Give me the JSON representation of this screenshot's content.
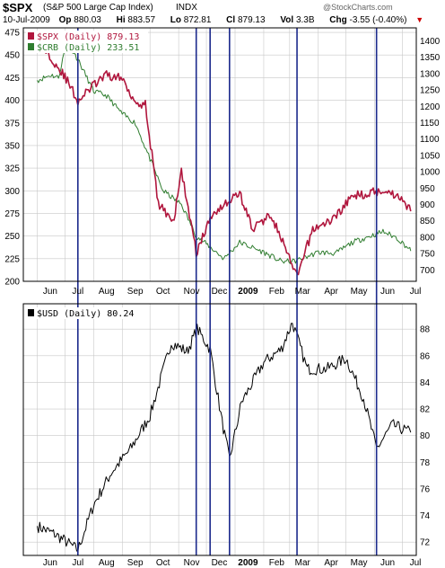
{
  "header": {
    "symbol": "$SPX",
    "name": "(S&P 500 Large Cap Index)",
    "exchange": "INDX",
    "watermark": "@StockCharts.com",
    "date": "10-Jul-2009",
    "open_label": "Op",
    "open": "880.03",
    "high_label": "Hi",
    "high": "883.57",
    "low_label": "Lo",
    "low": "872.81",
    "close_label": "Cl",
    "close": "879.13",
    "vol_label": "Vol",
    "vol": "3.3B",
    "chg_label": "Chg",
    "chg": "-3.55 (-0.40%)"
  },
  "legend": {
    "spx": "$SPX (Daily) 879.13",
    "crb": "$CRB (Daily) 233.51",
    "usd": "$USD (Daily) 80.24"
  },
  "colors": {
    "spx": "#b0163d",
    "crb": "#2f7d2f",
    "usd": "#000000",
    "vline": "#1c2a8c",
    "grid": "#c8c8c8"
  },
  "chart_data": [
    {
      "type": "line",
      "title": "$SPX (S&P 500 Large Cap Index) INDX",
      "x_ticks": [
        "Jun",
        "Jul",
        "Aug",
        "Sep",
        "Oct",
        "Nov",
        "Dec",
        "2009",
        "Feb",
        "Mar",
        "Apr",
        "May",
        "Jun",
        "Jul"
      ],
      "y_left_ticks": [
        200,
        225,
        250,
        275,
        300,
        325,
        350,
        375,
        400,
        425,
        450,
        475
      ],
      "y_left_range": [
        200,
        480
      ],
      "y_right_ticks": [
        700,
        750,
        800,
        850,
        900,
        950,
        1000,
        1050,
        1100,
        1150,
        1200,
        1250,
        1300,
        1350,
        1400
      ],
      "y_right_range": [
        665,
        1440
      ],
      "series": [
        {
          "name": "$SPX (Daily) 879.13",
          "axis": "right",
          "x": [
            "2008-06-01",
            "2008-06-16",
            "2008-07-01",
            "2008-07-08",
            "2008-07-15",
            "2008-08-01",
            "2008-08-15",
            "2008-09-01",
            "2008-09-15",
            "2008-09-26",
            "2008-10-10",
            "2008-10-27",
            "2008-11-04",
            "2008-11-20",
            "2008-12-08",
            "2009-01-06",
            "2009-01-20",
            "2009-02-09",
            "2009-03-09",
            "2009-03-26",
            "2009-04-15",
            "2009-05-08",
            "2009-06-12",
            "2009-06-30",
            "2009-07-10"
          ],
          "values": [
            1395,
            1350,
            1290,
            1255,
            1215,
            1265,
            1295,
            1285,
            1215,
            1205,
            900,
            850,
            1005,
            752,
            875,
            935,
            825,
            870,
            677,
            825,
            850,
            925,
            945,
            920,
            879
          ]
        },
        {
          "name": "$CRB (Daily) 233.51",
          "axis": "left",
          "x": [
            "2008-06-01",
            "2008-06-16",
            "2008-06-24",
            "2008-07-03",
            "2008-07-15",
            "2008-08-01",
            "2008-08-15",
            "2008-09-01",
            "2008-09-15",
            "2008-10-01",
            "2008-10-15",
            "2008-11-04",
            "2008-11-20",
            "2008-12-05",
            "2008-12-20",
            "2009-01-06",
            "2009-02-01",
            "2009-02-20",
            "2009-03-06",
            "2009-04-01",
            "2009-04-20",
            "2009-05-08",
            "2009-06-10",
            "2009-06-25",
            "2009-07-08",
            "2009-07-10"
          ],
          "values": [
            422,
            428,
            425,
            465,
            445,
            410,
            405,
            385,
            375,
            335,
            300,
            285,
            250,
            238,
            225,
            243,
            232,
            222,
            222,
            232,
            231,
            243,
            255,
            248,
            236,
            233.51
          ]
        }
      ]
    },
    {
      "type": "line",
      "title": "$USD (Daily) 80.24",
      "x_ticks": [
        "Jun",
        "Jul",
        "Aug",
        "Sep",
        "Oct",
        "Nov",
        "Dec",
        "2009",
        "Feb",
        "Mar",
        "Apr",
        "May",
        "Jun",
        "Jul"
      ],
      "y_ticks": [
        72,
        74,
        76,
        78,
        80,
        82,
        84,
        86,
        88
      ],
      "y_range": [
        71,
        89.9
      ],
      "series": [
        {
          "name": "$USD (Daily) 80.24",
          "x": [
            "2008-06-01",
            "2008-06-20",
            "2008-07-01",
            "2008-07-15",
            "2008-08-01",
            "2008-08-20",
            "2008-09-10",
            "2008-10-01",
            "2008-10-24",
            "2008-11-10",
            "2008-11-21",
            "2008-12-05",
            "2008-12-18",
            "2008-12-26",
            "2009-01-08",
            "2009-02-01",
            "2009-02-20",
            "2009-03-04",
            "2009-03-20",
            "2009-04-10",
            "2009-05-01",
            "2009-05-20",
            "2009-06-03",
            "2009-06-20",
            "2009-07-10"
          ],
          "values": [
            73.2,
            72.6,
            72.1,
            71.4,
            74.8,
            77.2,
            79.0,
            81.5,
            87.0,
            86.3,
            88.0,
            86.5,
            81.0,
            78.2,
            82.5,
            85.5,
            86.5,
            88.5,
            85.0,
            85.0,
            85.8,
            82.8,
            79.0,
            80.8,
            80.24
          ]
        }
      ],
      "vertical_markers": [
        "2008-07-15",
        "2008-11-20",
        "2008-12-05",
        "2008-12-26",
        "2009-03-09",
        "2009-06-03"
      ]
    }
  ]
}
